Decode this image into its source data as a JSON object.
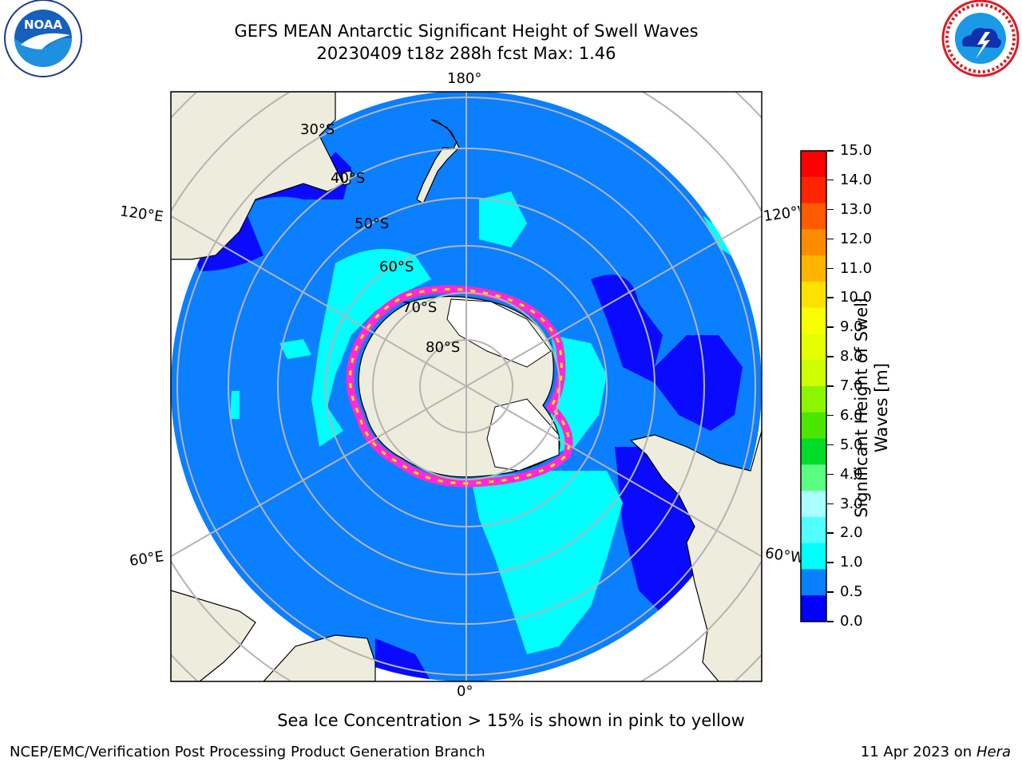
{
  "title": {
    "line1": "GEFS MEAN Antarctic Significant Height of Swell Waves",
    "line2": "20230409 t18z 288h fcst   Max: 1.46"
  },
  "logos": {
    "left": {
      "name": "noaa-logo",
      "text": "NOAA",
      "ring_text": "NATIONAL OCEANIC AND ATMOSPHERIC ADMINISTRATION · U.S. DEPARTMENT OF COMMERCE"
    },
    "right": {
      "name": "nws-logo",
      "ring_text": "NATIONAL WEATHER SERVICE"
    }
  },
  "map": {
    "projection": "south-polar-stereographic",
    "longitude_labels": {
      "top": "180°",
      "bottom": "0°",
      "upper_left": "120°E",
      "lower_left": "60°E",
      "upper_right": "120°W",
      "lower_right": "60°W"
    },
    "latitude_labels": [
      "30°S",
      "40°S",
      "50°S",
      "60°S",
      "70°S",
      "80°S"
    ],
    "colors": {
      "land": "#eeecdc",
      "ocean_main": "#0a7fff",
      "ocean_low": "#0a0aff",
      "ocean_high": "#00ffff",
      "sea_ice": "#ff2ad4",
      "sea_ice_edge": "#ffe900",
      "grid": "#b4b4b4"
    }
  },
  "colorbar": {
    "label_line1": "Significant Height of Swell",
    "label_line2": "Waves [m]",
    "ticks": [
      "15.0",
      "14.0",
      "13.0",
      "12.0",
      "11.0",
      "10.0",
      "9.0",
      "8.0",
      "7.0",
      "6.0",
      "5.0",
      "4.0",
      "3.0",
      "2.0",
      "1.0",
      "0.5",
      "0.0"
    ],
    "colors_top_to_bottom": [
      "#ff0000",
      "#ff2400",
      "#ff5a00",
      "#ff8c00",
      "#ffb400",
      "#ffe100",
      "#faff00",
      "#e6ff00",
      "#cdff00",
      "#8cf500",
      "#4be600",
      "#00dc28",
      "#5aff82",
      "#aaffff",
      "#50ffff",
      "#00ffff",
      "#0a7fff",
      "#0000ff"
    ]
  },
  "annotation": "Sea Ice Concentration > 15% is shown in pink to yellow",
  "footer": {
    "left": "NCEP/EMC/Verification Post Processing Product Generation Branch",
    "right_prefix": "11 Apr 2023 on ",
    "right_host": "Hera"
  }
}
